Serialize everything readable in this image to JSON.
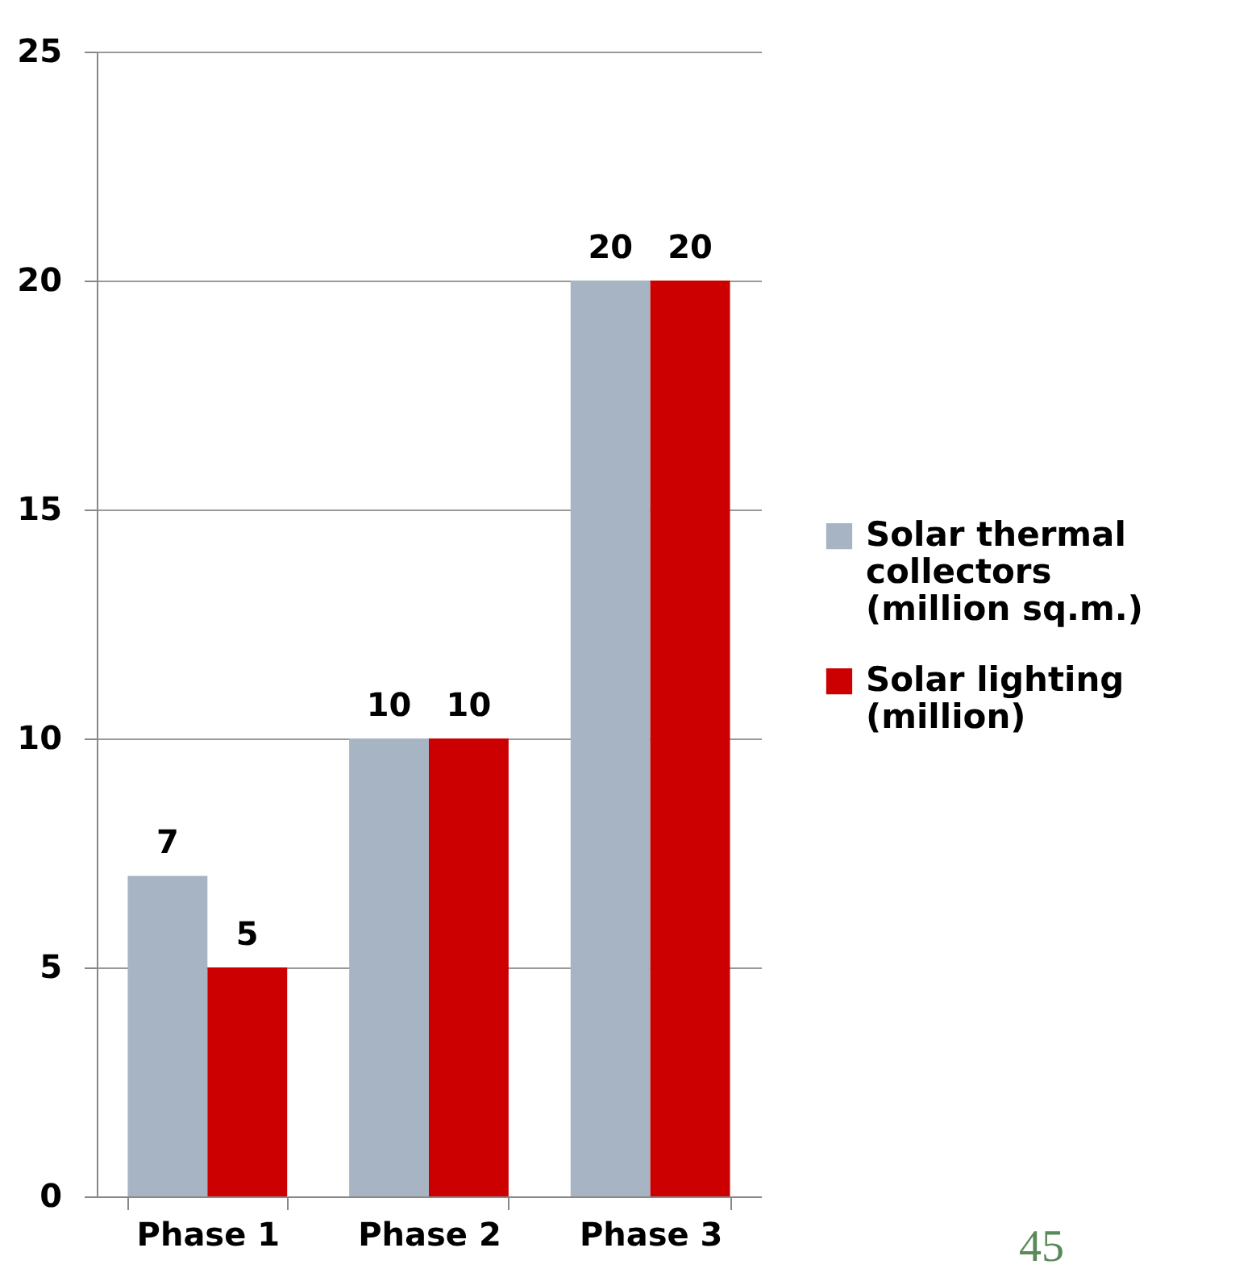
{
  "chart_data": {
    "type": "bar",
    "categories": [
      "Phase 1",
      "Phase 2",
      "Phase 3"
    ],
    "series": [
      {
        "name": "Solar thermal collectors (million sq.m.)",
        "color": "#a6b4c4",
        "values": [
          7,
          10,
          20
        ]
      },
      {
        "name": "Solar lighting (million)",
        "color": "#cc0000",
        "values": [
          5,
          10,
          20
        ]
      }
    ],
    "ylim": [
      0,
      25
    ],
    "yticks": [
      0,
      5,
      10,
      15,
      20,
      25
    ],
    "grid": "y",
    "legend": "right",
    "data_labels": true,
    "annotations": [
      "45"
    ]
  }
}
